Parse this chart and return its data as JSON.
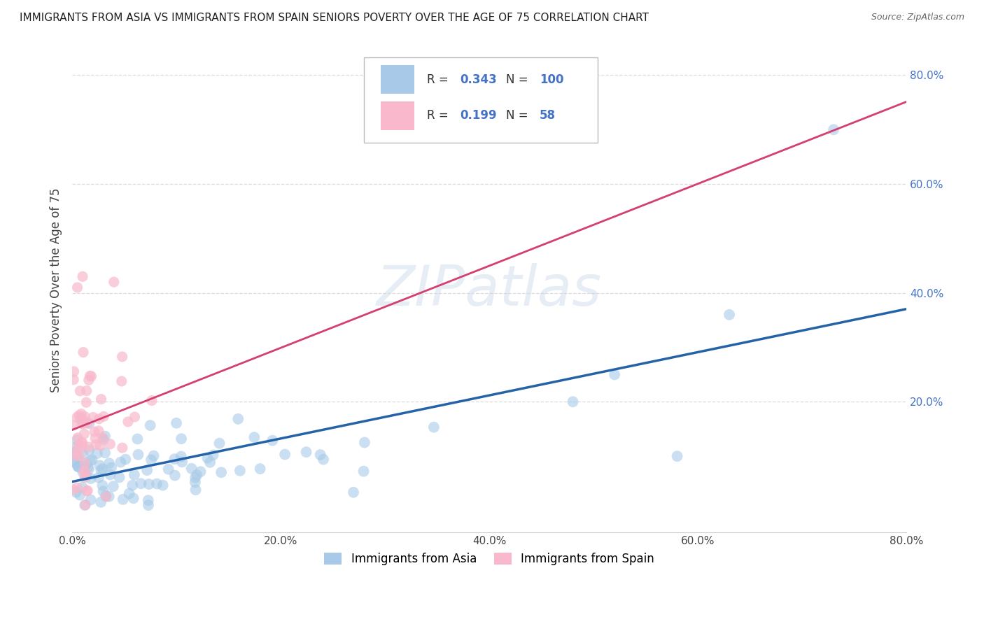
{
  "title": "IMMIGRANTS FROM ASIA VS IMMIGRANTS FROM SPAIN SENIORS POVERTY OVER THE AGE OF 75 CORRELATION CHART",
  "source": "Source: ZipAtlas.com",
  "ylabel": "Seniors Poverty Over the Age of 75",
  "xlabel_asia": "Immigrants from Asia",
  "xlabel_spain": "Immigrants from Spain",
  "watermark": "ZIPatlas",
  "R_asia": 0.343,
  "N_asia": 100,
  "R_spain": 0.199,
  "N_spain": 58,
  "color_asia": "#a8caE8",
  "color_spain": "#f9b8cb",
  "trendline_asia": "#2563a8",
  "trendline_spain": "#d44070",
  "trendline_spain_dashed": "#e8a0b0",
  "xlim": [
    0.0,
    0.8
  ],
  "ylim": [
    -0.04,
    0.85
  ],
  "ytick_vals": [
    0.2,
    0.4,
    0.6,
    0.8
  ],
  "xtick_vals": [
    0.0,
    0.2,
    0.4,
    0.6,
    0.8
  ],
  "background_color": "#ffffff",
  "grid_color": "#dddddd",
  "tick_color": "#4472c4",
  "title_color": "#222222",
  "source_color": "#666666"
}
